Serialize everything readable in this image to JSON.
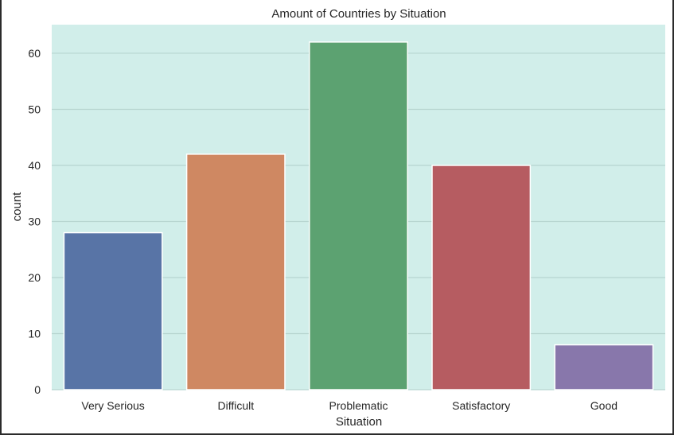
{
  "chart_data": {
    "type": "bar",
    "title": "Amount of Countries by Situation",
    "xlabel": "Situation",
    "ylabel": "count",
    "categories": [
      "Very Serious",
      "Difficult",
      "Problematic",
      "Satisfactory",
      "Good"
    ],
    "values": [
      28,
      42,
      62,
      40,
      8
    ],
    "bar_colors": [
      "#5874a6",
      "#cf8862",
      "#5ca271",
      "#b65c61",
      "#8877ab"
    ],
    "yticks": [
      0,
      10,
      20,
      30,
      40,
      50,
      60
    ],
    "ylim": [
      0,
      65.1
    ],
    "grid": true,
    "plot_background": "#d1eeea",
    "grid_color": "#b7d5d0"
  }
}
